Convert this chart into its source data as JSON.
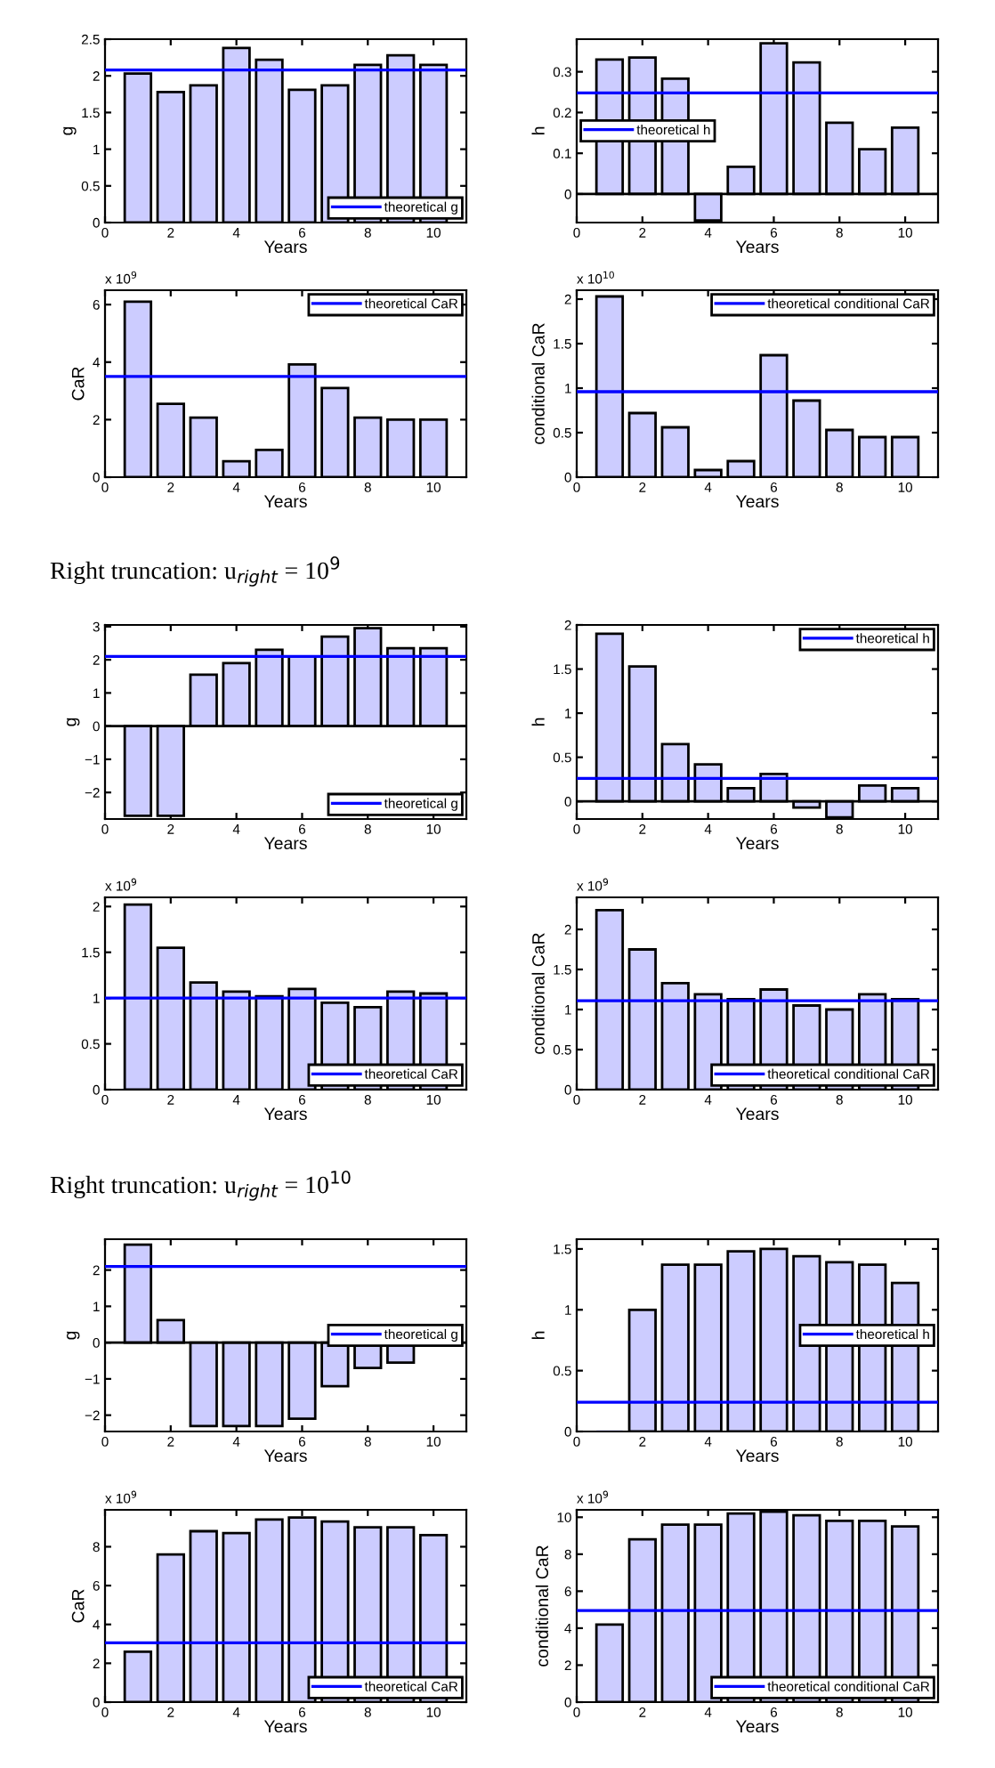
{
  "chart_data": [
    {
      "type": "bar",
      "x": [
        1,
        2,
        3,
        4,
        5,
        6,
        7,
        8,
        9,
        10
      ],
      "values": [
        2.03,
        1.78,
        1.87,
        2.38,
        2.22,
        1.81,
        1.87,
        2.15,
        2.28,
        2.15
      ],
      "color": "#ccccff",
      "xlim": [
        0,
        11
      ],
      "xticks": [
        0,
        2,
        4,
        6,
        8,
        10
      ],
      "ylim": [
        0,
        2.5
      ],
      "yticks": [
        0,
        0.5,
        1,
        1.5,
        2,
        2.5
      ],
      "xlabel": "Years",
      "ylabel": "g",
      "ref_lines": [
        {
          "axis": "y",
          "value": 2.08,
          "label": "theoretical g",
          "color": "#0000ff"
        }
      ],
      "legend": "bottom right"
    },
    {
      "type": "bar",
      "x": [
        1,
        2,
        3,
        4,
        5,
        6,
        7,
        8,
        9,
        10
      ],
      "values": [
        0.33,
        0.335,
        0.283,
        -0.065,
        0.067,
        0.37,
        0.323,
        0.175,
        0.11,
        0.163
      ],
      "color": "#ccccff",
      "xlim": [
        0,
        11
      ],
      "xticks": [
        0,
        2,
        4,
        6,
        8,
        10
      ],
      "ylim": [
        -0.07,
        0.38
      ],
      "yticks": [
        0,
        0.1,
        0.2,
        0.3
      ],
      "xlabel": "Years",
      "ylabel": "h",
      "ref_lines": [
        {
          "axis": "y",
          "value": 0,
          "label": null,
          "color": "#000000"
        },
        {
          "axis": "y",
          "value": 0.248,
          "label": "theoretical h",
          "color": "#0000ff"
        }
      ],
      "legend": "left"
    },
    {
      "type": "bar",
      "x": [
        1,
        2,
        3,
        4,
        5,
        6,
        7,
        8,
        9,
        10
      ],
      "values": [
        6.1,
        2.55,
        2.07,
        0.55,
        0.95,
        3.92,
        3.1,
        2.07,
        2.0,
        2.0
      ],
      "color": "#ccccff",
      "xlim": [
        0,
        11
      ],
      "xticks": [
        0,
        2,
        4,
        6,
        8,
        10
      ],
      "ylim": [
        0,
        6.5
      ],
      "yticks": [
        0,
        2,
        4,
        6
      ],
      "xlabel": "Years",
      "ylabel": "CaR",
      "annotations": [
        "x 10$^{9}$"
      ],
      "ref_lines": [
        {
          "axis": "y",
          "value": 3.5,
          "label": "theoretical CaR",
          "color": "#0000ff"
        }
      ],
      "legend": "top right"
    },
    {
      "type": "bar",
      "x": [
        1,
        2,
        3,
        4,
        5,
        6,
        7,
        8,
        9,
        10
      ],
      "values": [
        2.03,
        0.72,
        0.56,
        0.08,
        0.18,
        1.37,
        0.86,
        0.53,
        0.45,
        0.45
      ],
      "color": "#ccccff",
      "xlim": [
        0,
        11
      ],
      "xticks": [
        0,
        2,
        4,
        6,
        8,
        10
      ],
      "ylim": [
        0,
        2.1
      ],
      "yticks": [
        0,
        0.5,
        1,
        1.5,
        2
      ],
      "xlabel": "Years",
      "ylabel": "conditional CaR",
      "annotations": [
        "x 10$^{10}$"
      ],
      "ref_lines": [
        {
          "axis": "y",
          "value": 0.96,
          "label": "theoretical conditional CaR",
          "color": "#0000ff"
        }
      ],
      "legend": "top right"
    },
    {
      "type": "bar",
      "title": "Right truncation: u$_{right}$ = 10$^{9}$",
      "x": [
        1,
        2,
        3,
        4,
        5,
        6,
        7,
        8,
        9,
        10
      ],
      "values": [
        -2.7,
        -2.7,
        1.55,
        1.9,
        2.3,
        2.1,
        2.7,
        2.95,
        2.35,
        2.35
      ],
      "color": "#ccccff",
      "xlim": [
        0,
        11
      ],
      "xticks": [
        0,
        2,
        4,
        6,
        8,
        10
      ],
      "ylim": [
        -2.8,
        3.05
      ],
      "yticks": [
        -2,
        -1,
        0,
        1,
        2,
        3
      ],
      "xlabel": "Years",
      "ylabel": "g",
      "ref_lines": [
        {
          "axis": "y",
          "value": 0,
          "label": null,
          "color": "#000000"
        },
        {
          "axis": "y",
          "value": 2.1,
          "label": "theoretical g",
          "color": "#0000ff"
        }
      ],
      "legend": "bottom right"
    },
    {
      "type": "bar",
      "x": [
        1,
        2,
        3,
        4,
        5,
        6,
        7,
        8,
        9,
        10
      ],
      "values": [
        1.9,
        1.53,
        0.65,
        0.42,
        0.15,
        0.31,
        -0.07,
        -0.18,
        0.18,
        0.15
      ],
      "color": "#ccccff",
      "xlim": [
        0,
        11
      ],
      "xticks": [
        0,
        2,
        4,
        6,
        8,
        10
      ],
      "ylim": [
        -0.2,
        2.0
      ],
      "yticks": [
        0,
        0.5,
        1,
        1.5,
        2
      ],
      "xlabel": "Years",
      "ylabel": "h",
      "ref_lines": [
        {
          "axis": "y",
          "value": 0,
          "label": null,
          "color": "#000000"
        },
        {
          "axis": "y",
          "value": 0.26,
          "label": "theoretical h",
          "color": "#0000ff"
        }
      ],
      "legend": "top right"
    },
    {
      "type": "bar",
      "x": [
        1,
        2,
        3,
        4,
        5,
        6,
        7,
        8,
        9,
        10
      ],
      "values": [
        2.02,
        1.55,
        1.17,
        1.07,
        1.02,
        1.1,
        0.95,
        0.9,
        1.07,
        1.05
      ],
      "color": "#ccccff",
      "xlim": [
        0,
        11
      ],
      "xticks": [
        0,
        2,
        4,
        6,
        8,
        10
      ],
      "ylim": [
        0,
        2.1
      ],
      "yticks": [
        0,
        0.5,
        1,
        1.5,
        2
      ],
      "xlabel": "Years",
      "annotations": [
        "x 10$^{9}$"
      ],
      "ref_lines": [
        {
          "axis": "y",
          "value": 1.0,
          "label": "theoretical CaR",
          "color": "#0000ff"
        }
      ],
      "legend": "bottom right"
    },
    {
      "type": "bar",
      "x": [
        1,
        2,
        3,
        4,
        5,
        6,
        7,
        8,
        9,
        10
      ],
      "values": [
        2.24,
        1.75,
        1.33,
        1.19,
        1.13,
        1.25,
        1.05,
        1.0,
        1.19,
        1.13
      ],
      "color": "#ccccff",
      "xlim": [
        0,
        11
      ],
      "xticks": [
        0,
        2,
        4,
        6,
        8,
        10
      ],
      "ylim": [
        0,
        2.4
      ],
      "yticks": [
        0,
        0.5,
        1,
        1.5,
        2
      ],
      "xlabel": "Years",
      "ylabel": "conditional CaR",
      "annotations": [
        "x 10$^{9}$"
      ],
      "ref_lines": [
        {
          "axis": "y",
          "value": 1.11,
          "label": "theoretical conditional CaR",
          "color": "#0000ff"
        }
      ],
      "legend": "bottom right"
    },
    {
      "type": "bar",
      "title": "Right truncation: u$_{right}$ = 10$^{10}$",
      "x": [
        1,
        2,
        3,
        4,
        5,
        6,
        7,
        8,
        9,
        10
      ],
      "values": [
        2.7,
        0.62,
        -2.3,
        -2.3,
        -2.3,
        -2.1,
        -1.2,
        -0.7,
        -0.55,
        0
      ],
      "color": "#ccccff",
      "xlim": [
        0,
        11
      ],
      "xticks": [
        0,
        2,
        4,
        6,
        8,
        10
      ],
      "ylim": [
        -2.45,
        2.85
      ],
      "yticks": [
        -2,
        -1,
        0,
        1,
        2
      ],
      "xlabel": "Years",
      "ylabel": "g",
      "ref_lines": [
        {
          "axis": "y",
          "value": 0,
          "label": null,
          "color": "#000000"
        },
        {
          "axis": "y",
          "value": 2.1,
          "label": "theoretical g",
          "color": "#0000ff"
        }
      ],
      "legend": "right"
    },
    {
      "type": "bar",
      "x": [
        1,
        2,
        3,
        4,
        5,
        6,
        7,
        8,
        9,
        10
      ],
      "values": [
        0,
        1.0,
        1.37,
        1.37,
        1.48,
        1.5,
        1.44,
        1.39,
        1.37,
        1.22
      ],
      "color": "#ccccff",
      "xlim": [
        0,
        11
      ],
      "xticks": [
        0,
        2,
        4,
        6,
        8,
        10
      ],
      "ylim": [
        0,
        1.58
      ],
      "yticks": [
        0,
        0.5,
        1,
        1.5
      ],
      "xlabel": "Years",
      "ylabel": "h",
      "ref_lines": [
        {
          "axis": "y",
          "value": 0.24,
          "label": "theoretical h",
          "color": "#0000ff"
        }
      ],
      "legend": "right"
    },
    {
      "type": "bar",
      "x": [
        1,
        2,
        3,
        4,
        5,
        6,
        7,
        8,
        9,
        10
      ],
      "values": [
        2.6,
        7.6,
        8.8,
        8.7,
        9.4,
        9.5,
        9.3,
        9.0,
        9.0,
        8.6
      ],
      "color": "#ccccff",
      "xlim": [
        0,
        11
      ],
      "xticks": [
        0,
        2,
        4,
        6,
        8,
        10
      ],
      "ylim": [
        0,
        9.9
      ],
      "yticks": [
        0,
        2,
        4,
        6,
        8
      ],
      "xlabel": "Years",
      "ylabel": "CaR",
      "annotations": [
        "x 10$^{9}$"
      ],
      "ref_lines": [
        {
          "axis": "y",
          "value": 3.05,
          "label": "theoretical CaR",
          "color": "#0000ff"
        }
      ],
      "legend": "bottom right"
    },
    {
      "type": "bar",
      "x": [
        1,
        2,
        3,
        4,
        5,
        6,
        7,
        8,
        9,
        10
      ],
      "values": [
        4.2,
        8.8,
        9.6,
        9.6,
        10.2,
        10.3,
        10.1,
        9.8,
        9.8,
        9.5
      ],
      "color": "#ccccff",
      "xlim": [
        0,
        11
      ],
      "xticks": [
        0,
        2,
        4,
        6,
        8,
        10
      ],
      "ylim": [
        0,
        10.4
      ],
      "yticks": [
        0,
        2,
        4,
        6,
        8,
        10
      ],
      "xlabel": "Years",
      "ylabel": "conditional CaR",
      "annotations": [
        "x 10$^{9}$"
      ],
      "ref_lines": [
        {
          "axis": "y",
          "value": 4.95,
          "label": "theoretical conditional CaR",
          "color": "#0000ff"
        }
      ],
      "legend": "bottom right"
    }
  ]
}
